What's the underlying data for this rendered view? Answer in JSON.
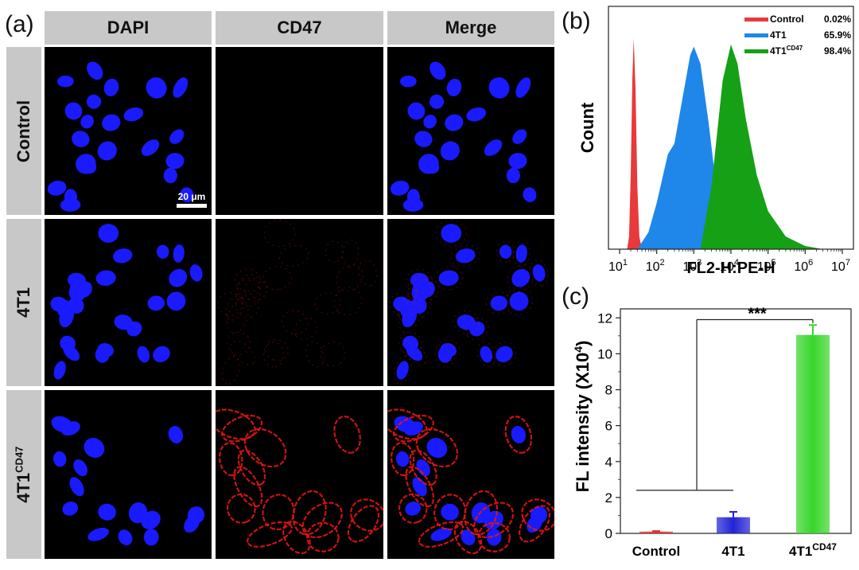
{
  "panels": {
    "a": "(a)",
    "b": "(b)",
    "c": "(c)"
  },
  "microscopy": {
    "columns": [
      "DAPI",
      "CD47",
      "Merge"
    ],
    "rows": [
      {
        "label": "Control",
        "sup": ""
      },
      {
        "label": "4T1",
        "sup": ""
      },
      {
        "label": "4T1",
        "sup": "CD47"
      }
    ],
    "scale_bar": "20 μm",
    "colors": {
      "nucleus": "#1a1aff",
      "membrane": "#e01515"
    }
  },
  "chart_data": [
    {
      "type": "area",
      "xlabel": "FL2-H:PE-H",
      "ylabel": "Count",
      "xscale": "log",
      "xlim": [
        10,
        10000000
      ],
      "xticks": [
        {
          "base": "10",
          "exp": "1"
        },
        {
          "base": "10",
          "exp": "2"
        },
        {
          "base": "10",
          "exp": "3"
        },
        {
          "base": "10",
          "exp": "4"
        },
        {
          "base": "10",
          "exp": "5"
        },
        {
          "base": "10",
          "exp": "6"
        },
        {
          "base": "10",
          "exp": "7"
        }
      ],
      "legend_position": "top-right",
      "series": [
        {
          "name": "Control",
          "sup": "",
          "percent": "0.02%",
          "color": "#e8393b",
          "x": [
            16,
            18,
            20,
            22,
            24,
            27,
            30,
            34,
            40
          ],
          "y": [
            0,
            0.06,
            0.35,
            0.8,
            1.0,
            0.75,
            0.3,
            0.06,
            0
          ]
        },
        {
          "name": "4T1",
          "sup": "",
          "percent": "65.9%",
          "color": "#1f86ea",
          "x": [
            30,
            60,
            100,
            200,
            300,
            500,
            800,
            1000,
            1500,
            2500,
            4000,
            6000,
            10000
          ],
          "y": [
            0,
            0.08,
            0.22,
            0.45,
            0.5,
            0.72,
            0.92,
            0.96,
            0.88,
            0.6,
            0.3,
            0.06,
            0
          ]
        },
        {
          "name": "4T1",
          "sup": "CD47",
          "percent": "98.4%",
          "color": "#16a016",
          "x": [
            1500,
            3000,
            6000,
            10000,
            15000,
            25000,
            50000,
            100000,
            300000,
            1000000,
            3000000
          ],
          "y": [
            0,
            0.3,
            0.8,
            0.97,
            0.88,
            0.62,
            0.35,
            0.18,
            0.06,
            0.015,
            0
          ]
        }
      ]
    },
    {
      "type": "bar",
      "categories": [
        {
          "label": "Control",
          "sup": ""
        },
        {
          "label": "4T1",
          "sup": ""
        },
        {
          "label": "4T1",
          "sup": "CD47"
        }
      ],
      "values": [
        0.1,
        0.9,
        11.05
      ],
      "errors": [
        0.03,
        0.3,
        0.55
      ],
      "colors": [
        "#e03030",
        "#2323d6",
        "#38d62a"
      ],
      "ylabel": "FL intensity (X10",
      "ylabel_sup": "4",
      "ylabel_end": ")",
      "ylim": [
        0,
        12.5
      ],
      "yticks": [
        "0",
        "2",
        "4",
        "6",
        "8",
        "10",
        "12"
      ],
      "significance": "***"
    }
  ]
}
